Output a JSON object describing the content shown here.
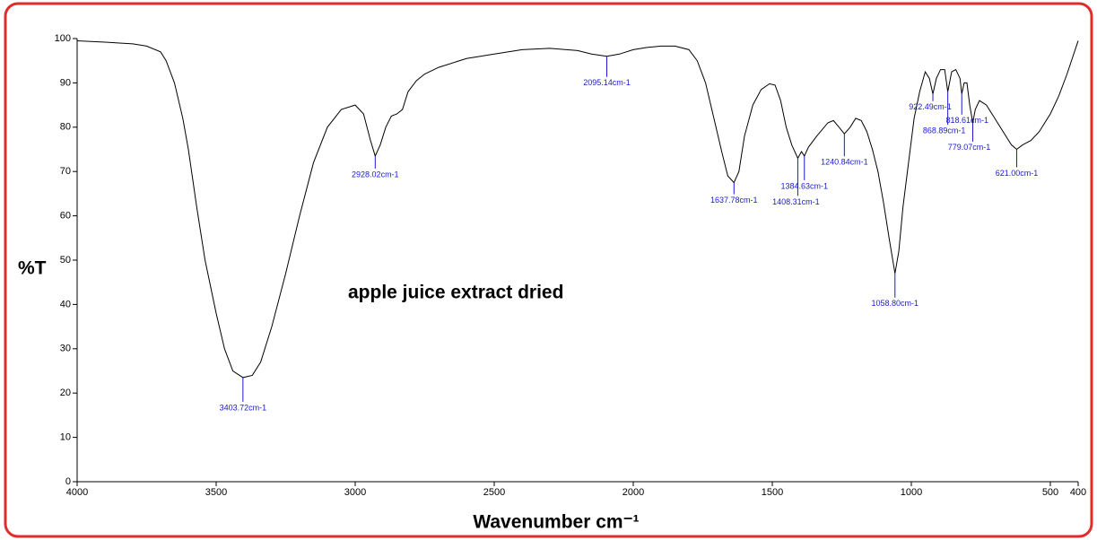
{
  "chart_data": {
    "type": "line",
    "ylabel": "%T",
    "xlabel": "Wavenumber cm⁻¹",
    "annotation": "apple juice extract dried",
    "xlim": [
      4000,
      400
    ],
    "ylim": [
      0,
      100
    ],
    "xticks": [
      4000,
      3500,
      3000,
      2500,
      2000,
      1500,
      1000,
      500,
      400
    ],
    "yticks": [
      0,
      10,
      20,
      30,
      40,
      50,
      60,
      70,
      80,
      90,
      100
    ],
    "grid": false,
    "series": [
      {
        "color": "#000000",
        "x": [
          4000,
          3900,
          3800,
          3750,
          3700,
          3680,
          3650,
          3620,
          3600,
          3570,
          3540,
          3500,
          3470,
          3440,
          3403.72,
          3370,
          3340,
          3300,
          3250,
          3200,
          3150,
          3100,
          3050,
          3000,
          2970,
          2945,
          2928.02,
          2910,
          2890,
          2870,
          2850,
          2830,
          2810,
          2780,
          2750,
          2700,
          2600,
          2500,
          2400,
          2300,
          2200,
          2150,
          2095.14,
          2050,
          2000,
          1950,
          1900,
          1850,
          1800,
          1770,
          1740,
          1710,
          1680,
          1660,
          1637.78,
          1620,
          1600,
          1570,
          1540,
          1510,
          1490,
          1470,
          1450,
          1430,
          1408.31,
          1395,
          1384.63,
          1370,
          1340,
          1300,
          1280,
          1260,
          1240.84,
          1220,
          1200,
          1180,
          1160,
          1140,
          1120,
          1100,
          1080,
          1058.8,
          1045,
          1030,
          1010,
          990,
          970,
          950,
          935,
          922.49,
          910,
          895,
          880,
          868.89,
          855,
          840,
          825,
          818.61,
          810,
          800,
          790,
          779.07,
          770,
          755,
          730,
          700,
          670,
          640,
          621,
          600,
          570,
          540,
          500,
          470,
          440,
          400
        ],
        "values": [
          99.5,
          99.2,
          98.8,
          98.3,
          97,
          95,
          90,
          82,
          75,
          62,
          50,
          38,
          30,
          25,
          23.5,
          24,
          27,
          35,
          47,
          60,
          72,
          80,
          84,
          85,
          83,
          77,
          73.5,
          76,
          80,
          82.5,
          83,
          84,
          88,
          90.5,
          92,
          93.5,
          95.5,
          96.5,
          97.5,
          97.8,
          97.3,
          96.5,
          96,
          96.5,
          97.5,
          98,
          98.3,
          98.3,
          97.5,
          95,
          90,
          82,
          74,
          69,
          67.5,
          70,
          78,
          85,
          88.5,
          89.8,
          89.5,
          86,
          80,
          76,
          73,
          74.5,
          73.5,
          75.5,
          78,
          81,
          81.5,
          80,
          78.5,
          80,
          82,
          81.5,
          79,
          75,
          70,
          63,
          55,
          47,
          52,
          62,
          72,
          82,
          88,
          92.5,
          91,
          87.5,
          91,
          93,
          93,
          88,
          92.5,
          93,
          91,
          87.5,
          90,
          90,
          85,
          81,
          84,
          86,
          85,
          82,
          79,
          76,
          75,
          76,
          77,
          79,
          83,
          87,
          92,
          99.5
        ]
      }
    ],
    "peaks": [
      {
        "x": 3403.72,
        "y": 23.5,
        "label": "3403.72cm-1"
      },
      {
        "x": 2928.02,
        "y": 73.5,
        "label": "2928.02cm-1"
      },
      {
        "x": 2095.14,
        "y": 96,
        "label": "2095.14cm-1"
      },
      {
        "x": 1637.78,
        "y": 67.5,
        "label": "1637.78cm-1"
      },
      {
        "x": 1384.63,
        "y": 73.5,
        "label": "1384.63cm-1"
      },
      {
        "x": 1408.31,
        "y": 73,
        "label": "1408.31cm-1"
      },
      {
        "x": 1240.84,
        "y": 78.5,
        "label": "1240.84cm-1"
      },
      {
        "x": 1058.8,
        "y": 47,
        "label": "1058.80cm-1"
      },
      {
        "x": 922.49,
        "y": 87.5,
        "label": "922.49cm-1"
      },
      {
        "x": 868.89,
        "y": 88,
        "label": "868.89cm-1"
      },
      {
        "x": 818.61,
        "y": 87.5,
        "label": "818.61cm-1"
      },
      {
        "x": 779.07,
        "y": 81,
        "label": "779.07cm-1"
      },
      {
        "x": 621.0,
        "y": 75,
        "label": "621.00cm-1"
      }
    ]
  }
}
